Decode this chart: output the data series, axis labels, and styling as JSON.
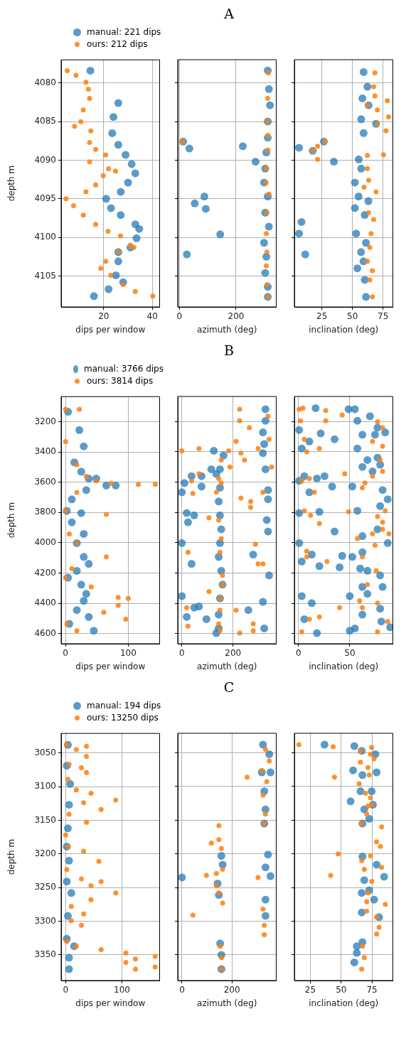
{
  "chart_data": [
    {
      "type": "scatter",
      "xlabel": "dips per window",
      "ylabel": "depth m",
      "xlim": [
        2.5,
        43
      ],
      "xticks": [
        20,
        40
      ],
      "ylim": [
        4109,
        4077
      ],
      "yticks": [
        4080,
        4085,
        4090,
        4095,
        4100,
        4105
      ],
      "grid": true,
      "marker": "circle",
      "legend": "top",
      "series": [
        {
          "name": "manual: 221 dips",
          "color": "#1f77b4",
          "x": [
            14.5,
            26,
            24,
            23.5,
            26,
            29,
            31.5,
            33,
            30,
            27,
            21,
            23,
            27,
            33,
            34.6,
            33.5,
            31,
            26,
            26,
            25,
            28,
            22,
            16
          ],
          "values": [
            4078.4,
            4082.6,
            4084.4,
            4086.5,
            4088,
            4089.3,
            4090.5,
            4091.7,
            4092.9,
            4094.1,
            4095,
            4096.2,
            4097.1,
            4098.3,
            4098.9,
            4100.1,
            4101.3,
            4101.9,
            4103.1,
            4104.9,
            4105.8,
            4106.7,
            4107.6
          ]
        },
        {
          "name": "ours: 212 dips",
          "color": "#ff7f0e",
          "x": [
            5,
            8.6,
            12.7,
            13.7,
            14.2,
            11.6,
            10.6,
            8,
            14.7,
            14.2,
            16.7,
            20.8,
            14.2,
            22,
            24.9,
            19.8,
            16.7,
            12.7,
            4.5,
            7.6,
            11.6,
            16.7,
            21.8,
            26.9,
            31,
            32.4,
            26,
            20.8,
            18.8,
            22.9,
            28,
            33,
            40.2
          ],
          "values": [
            4078.4,
            4079,
            4079.9,
            4080.8,
            4082,
            4083.5,
            4085,
            4085.6,
            4086.2,
            4087.7,
            4088.6,
            4089.3,
            4090.2,
            4091.1,
            4091.4,
            4092,
            4093.2,
            4094.1,
            4095,
            4095.9,
            4097.1,
            4098.3,
            4099.2,
            4099.8,
            4101,
            4101.3,
            4101.9,
            4103.1,
            4104,
            4104.9,
            4106.1,
            4107,
            4107.6
          ]
        }
      ]
    },
    {
      "type": "scatter",
      "title": "A",
      "xlabel": "azimuth (deg)",
      "xlim": [
        -6,
        342
      ],
      "xticks": [
        0,
        200
      ],
      "ylim": [
        4109,
        4077
      ],
      "yticks": [
        4080,
        4085,
        4090,
        4095,
        4100,
        4105
      ],
      "grid": true,
      "marker": "circle",
      "tick_labels": "x",
      "series": [
        {
          "color": "#1f77b4",
          "x": [
            312,
            316,
            320,
            312,
            312,
            307,
            303,
            299,
            312,
            303,
            316,
            299,
            307,
            303,
            312,
            312,
            13,
            35,
            224,
            269,
            88,
            54,
            93,
            144,
            26
          ],
          "values": [
            4078.4,
            4080.8,
            4082.9,
            4085,
            4087.1,
            4089,
            4091.1,
            4092.9,
            4094.7,
            4096.8,
            4098.6,
            4100.7,
            4102.5,
            4104.6,
            4106.4,
            4107.7,
            4087.6,
            4088.5,
            4088.2,
            4090.2,
            4094.7,
            4095.6,
            4096.3,
            4099.6,
            4102.2
          ]
        },
        {
          "color": "#ff7f0e",
          "x": [
            314,
            312,
            310,
            312,
            312,
            307,
            306,
            316,
            309,
            307,
            309,
            307,
            310,
            312,
            11
          ],
          "values": [
            4078.7,
            4082,
            4085,
            4086.8,
            4088.7,
            4091.1,
            4092.9,
            4094.4,
            4096.8,
            4099.5,
            4101.9,
            4103.7,
            4106.1,
            4107.7,
            4087.6
          ]
        }
      ]
    },
    {
      "type": "scatter",
      "xlabel": "inclination (deg)",
      "xlim": [
        2.5,
        83
      ],
      "xticks": [
        25,
        50,
        75
      ],
      "ylim": [
        4109,
        4077
      ],
      "yticks": [
        4080,
        4085,
        4090,
        4095,
        4100,
        4105
      ],
      "grid": true,
      "marker": "circle",
      "tick_labels": "x",
      "series": [
        {
          "color": "#1f77b4",
          "x": [
            59.1,
            62.2,
            58.1,
            63.2,
            57.1,
            69.3,
            59.1,
            6.3,
            17.5,
            26.6,
            34.8,
            55.1,
            57.1,
            52,
            55,
            63,
            52,
            60,
            8.3,
            6.3,
            53,
            61,
            57,
            11.4,
            59,
            54,
            60,
            61
          ],
          "values": [
            4078.6,
            4080.5,
            4082,
            4082.9,
            4084.7,
            4085.3,
            4086.5,
            4088.4,
            4088.8,
            4087.6,
            4090.2,
            4089.9,
            4091.1,
            4092.9,
            4094.7,
            4095.3,
            4096.2,
            4097.1,
            4098,
            4099.5,
            4099.5,
            4100.7,
            4101.9,
            4102.2,
            4103.1,
            4104,
            4105.5,
            4107.7
          ]
        },
        {
          "color": "#ff7f0e",
          "x": [
            68.3,
            67.3,
            68.3,
            78.5,
            62.2,
            70.3,
            79.5,
            70.3,
            77.4,
            27.6,
            21.5,
            17.5,
            21.5,
            75.4,
            62.2,
            62.2,
            63.2,
            59.5,
            69.3,
            63.2,
            67.3,
            65.2,
            64.2,
            62.2,
            66.3,
            64.2,
            66.3
          ],
          "values": [
            4078.7,
            4080.5,
            4081.7,
            4082.3,
            4082.9,
            4083.5,
            4084.4,
            4085.3,
            4086.2,
            4087.6,
            4088.2,
            4088.8,
            4089.9,
            4089.3,
            4089.4,
            4091.1,
            4092.6,
            4093.5,
            4094.1,
            4096.8,
            4097.7,
            4099.5,
            4101.3,
            4103.1,
            4104.3,
            4105.5,
            4107.7
          ]
        }
      ]
    },
    {
      "type": "scatter",
      "xlabel": "dips per window",
      "ylabel": "depth m",
      "xlim": [
        -7,
        150
      ],
      "xticks": [
        0,
        100
      ],
      "ylim": [
        4666,
        3035
      ],
      "yticks": [
        3200,
        3400,
        3600,
        3800,
        4000,
        4200,
        4400,
        4600
      ],
      "grid": true,
      "marker": "circle",
      "legend": "top",
      "series": [
        {
          "name": "manual: 3766 dips",
          "color": "#1f77b4",
          "x": [
            4,
            22,
            29,
            14,
            25,
            37,
            49,
            65,
            80,
            33,
            10,
            2,
            25,
            10,
            29,
            18,
            29,
            37,
            18,
            4,
            25,
            33,
            29,
            18,
            37,
            6,
            45
          ],
          "values": [
            3135,
            3256,
            3363,
            3469,
            3530,
            3576,
            3576,
            3622,
            3622,
            3652,
            3713,
            3789,
            3804,
            3865,
            3941,
            4002,
            4093,
            4139,
            4185,
            4230,
            4276,
            4337,
            4383,
            4444,
            4489,
            4535,
            4580
          ]
        },
        {
          "name": "ours: 3814 dips",
          "color": "#ff7f0e",
          "x": [
            0,
            22,
            0,
            18,
            33,
            49,
            73,
            116,
            143,
            18,
            0,
            65,
            6,
            18,
            65,
            10,
            0,
            41,
            84,
            100,
            84,
            61,
            96,
            2,
            18
          ],
          "values": [
            3119,
            3119,
            3332,
            3485,
            3561,
            3591,
            3606,
            3614,
            3614,
            3667,
            3789,
            3812,
            3941,
            4002,
            4093,
            4170,
            4230,
            4291,
            4360,
            4367,
            4413,
            4459,
            4504,
            4535,
            4580
          ]
        }
      ]
    },
    {
      "type": "scatter",
      "title": "B",
      "xlabel": "azimuth (deg)",
      "xlim": [
        -16,
        369
      ],
      "xticks": [
        0,
        200
      ],
      "ylim": [
        4666,
        3035
      ],
      "yticks": [
        3200,
        3400,
        3600,
        3800,
        4000,
        4200,
        4400,
        4600
      ],
      "grid": true,
      "marker": "circle",
      "tick_labels": "x",
      "series": [
        {
          "color": "#1f77b4",
          "x": [
            163,
            149,
            135,
            149,
            144,
            149,
            154,
            149,
            144,
            154,
            159,
            149,
            144,
            144,
            135,
            327,
            327,
            317,
            322,
            317,
            327,
            337,
            337,
            332,
            337,
            341,
            317,
            322,
            10,
            38,
            77,
            0,
            77,
            19,
            48,
            24,
            0,
            38,
            0,
            48,
            67,
            19,
            125,
            115,
            279,
            260,
            96
          ],
          "values": [
            3424,
            3515,
            3546,
            3637,
            3728,
            3819,
            3911,
            4002,
            4093,
            4185,
            4276,
            4367,
            4474,
            4565,
            4596,
            3119,
            3195,
            3272,
            3349,
            3409,
            3515,
            3652,
            3713,
            3850,
            3926,
            4215,
            4390,
            4565,
            3606,
            3561,
            3561,
            3667,
            3629,
            3804,
            3819,
            3865,
            4002,
            4139,
            4352,
            4428,
            4420,
            4489,
            3393,
            3515,
            4078,
            4444,
            4504
          ]
        },
        {
          "color": "#ff7f0e",
          "x": [
            154,
            144,
            154,
            135,
            144,
            154,
            149,
            159,
            159,
            149,
            149,
            144,
            149,
            226,
            226,
            264,
            337,
            341,
            212,
            183,
            231,
            245,
            188,
            298,
            351,
            67,
            0,
            67,
            38,
            43,
            231,
            269,
            269,
            317,
            106,
            24,
            288,
            298,
            317,
            106,
            19,
            24,
            279,
            279,
            226,
            212
          ],
          "values": [
            3454,
            3576,
            3606,
            3667,
            3850,
            3972,
            4063,
            4215,
            4276,
            4367,
            4444,
            4535,
            4580,
            3119,
            3195,
            3241,
            3165,
            3317,
            3332,
            3393,
            3409,
            3454,
            3500,
            3378,
            3500,
            3378,
            3393,
            3545,
            3591,
            3675,
            3705,
            3728,
            3766,
            3667,
            3835,
            4063,
            4010,
            4139,
            4139,
            4322,
            4428,
            4550,
            4535,
            4580,
            4596,
            4444
          ]
        }
      ]
    },
    {
      "type": "scatter",
      "xlabel": "inclination (deg)",
      "xlim": [
        -4,
        92
      ],
      "xticks": [
        0,
        50
      ],
      "ylim": [
        4666,
        3035
      ],
      "yticks": [
        3200,
        3400,
        3600,
        3800,
        4000,
        4200,
        4400,
        4600
      ],
      "grid": true,
      "marker": "circle",
      "tick_labels": "x",
      "series": [
        {
          "color": "#1f77b4",
          "x": [
            16.7,
            48.8,
            55,
            57.4,
            69.7,
            77.1,
            74.6,
            84.5,
            62.3,
            0.7,
            21.7,
            3.2,
            10.6,
            35.2,
            57.4,
            67.2,
            77.1,
            62.3,
            79.6,
            72.2,
            0.7,
            5.7,
            18,
            25.4,
            32.8,
            52.5,
            10.6,
            82,
            87,
            79.6,
            0.7,
            20.4,
            57.4,
            35.2,
            62.3,
            77.1,
            87,
            0.7,
            13,
            3.2,
            42.6,
            52.5,
            62.3,
            67.2,
            60.1,
            79.6,
            20.4,
            40.1,
            62.3,
            82,
            50,
            67.2,
            3.2,
            13,
            5.7,
            62.3,
            79.6,
            80.8,
            89.4,
            50,
            18,
            55
          ],
          "values": [
            3112,
            3119,
            3119,
            3195,
            3165,
            3241,
            3287,
            3272,
            3287,
            3256,
            3279,
            3378,
            3332,
            3317,
            3378,
            3454,
            3439,
            3500,
            3485,
            3530,
            3591,
            3561,
            3576,
            3561,
            3629,
            3629,
            3667,
            3652,
            3713,
            3758,
            3804,
            3796,
            3789,
            3926,
            3956,
            3911,
            4002,
            4002,
            4078,
            4124,
            4086,
            4093,
            4063,
            4185,
            4170,
            4215,
            4154,
            4162,
            4291,
            4291,
            4352,
            4337,
            4352,
            4398,
            4504,
            4474,
            4435,
            4519,
            4557,
            4580,
            4596,
            4565
          ]
        },
        {
          "color": "#ff7f0e",
          "x": [
            0.7,
            4.4,
            26.6,
            42.6,
            26.6,
            2,
            77.1,
            82,
            5.7,
            20.4,
            8.1,
            72.2,
            82,
            79.6,
            72.2,
            82,
            45.1,
            3.2,
            10.6,
            15.5,
            64.8,
            62.3,
            5.7,
            11.8,
            20.4,
            48.8,
            77.1,
            84.5,
            82,
            82,
            72.2,
            88.2,
            57.4,
            74.6,
            8.1,
            8.1,
            27.8,
            62.3,
            75.8,
            67.2,
            40.1,
            59.6,
            62.3,
            77.1,
            10.6,
            20.4,
            3.2,
            87,
            77.1
          ],
          "values": [
            3119,
            3112,
            3127,
            3157,
            3195,
            3195,
            3203,
            3241,
            3317,
            3378,
            3401,
            3332,
            3363,
            3454,
            3561,
            3530,
            3545,
            3591,
            3576,
            3667,
            3606,
            3637,
            3789,
            3819,
            3873,
            3796,
            3827,
            3789,
            3865,
            3911,
            3941,
            3941,
            3972,
            4017,
            4055,
            4093,
            4124,
            4093,
            4185,
            4276,
            4428,
            4383,
            4428,
            4398,
            4504,
            4489,
            4587,
            4519,
            4587
          ]
        }
      ]
    },
    {
      "type": "scatter",
      "xlabel": "dips per window",
      "ylabel": "depth m",
      "xlim": [
        -8,
        167
      ],
      "xticks": [
        0,
        100
      ],
      "ylim": [
        3388,
        3021
      ],
      "yticks": [
        3050,
        3100,
        3150,
        3200,
        3250,
        3300,
        3350
      ],
      "grid": true,
      "marker": "circle",
      "legend": "top",
      "series": [
        {
          "name": "manual: 194 dips",
          "color": "#1f77b4",
          "x": [
            4,
            2,
            8,
            6,
            4,
            2,
            6,
            2,
            10,
            4,
            2,
            15,
            6,
            6
          ],
          "values": [
            3038,
            3069,
            3096,
            3127,
            3162,
            3189,
            3210,
            3241,
            3258,
            3292,
            3326,
            3337,
            3354,
            3371
          ]
        },
        {
          "name": "ours: 13250 dips",
          "color": "#ff7f0e",
          "x": [
            2,
            37,
            19,
            37,
            6,
            28,
            37,
            4,
            19,
            45,
            89,
            63,
            32,
            6,
            37,
            0,
            4,
            32,
            59,
            2,
            28,
            63,
            45,
            89,
            45,
            10,
            32,
            10,
            28,
            2,
            19,
            63,
            107,
            159,
            124,
            107,
            159,
            124
          ],
          "values": [
            3038,
            3040,
            3045,
            3055,
            3067,
            3072,
            3079,
            3089,
            3105,
            3110,
            3120,
            3134,
            3124,
            3141,
            3153,
            3172,
            3189,
            3196,
            3211,
            3223,
            3237,
            3241,
            3247,
            3258,
            3268,
            3278,
            3289,
            3299,
            3306,
            3330,
            3337,
            3342,
            3347,
            3352,
            3356,
            3361,
            3368,
            3371
          ]
        }
      ]
    },
    {
      "type": "scatter",
      "title": "C",
      "xlabel": "azimuth (deg)",
      "xlim": [
        -17,
        378
      ],
      "xticks": [
        0,
        200
      ],
      "ylim": [
        3388,
        3021
      ],
      "yticks": [
        3050,
        3100,
        3150,
        3200,
        3250,
        3300,
        3350
      ],
      "grid": true,
      "marker": "circle",
      "tick_labels": "x",
      "series": [
        {
          "color": "#1f77b4",
          "x": [
            325,
            350,
            320,
            355,
            330,
            335,
            330,
            158,
            163,
            0,
            345,
            335,
            355,
            143,
            148,
            335,
            335,
            153,
            158,
            158
          ],
          "values": [
            3038,
            3052,
            3079,
            3079,
            3107,
            3134,
            3155,
            3203,
            3216,
            3235,
            3201,
            3220,
            3233,
            3244,
            3261,
            3268,
            3292,
            3333,
            3350,
            3371
          ]
        },
        {
          "color": "#ff7f0e",
          "x": [
            335,
            350,
            320,
            261,
            340,
            325,
            335,
            330,
            148,
            118,
            148,
            158,
            163,
            98,
            138,
            305,
            138,
            148,
            163,
            325,
            330,
            330,
            44,
            153,
            158,
            158
          ],
          "values": [
            3045,
            3062,
            3076,
            3086,
            3093,
            3113,
            3141,
            3155,
            3158,
            3184,
            3179,
            3192,
            3223,
            3232,
            3229,
            3235,
            3247,
            3258,
            3273,
            3282,
            3306,
            3320,
            3291,
            3337,
            3354,
            3371
          ]
        }
      ]
    },
    {
      "type": "scatter",
      "xlabel": "inclination (deg)",
      "xlim": [
        12,
        92
      ],
      "xticks": [
        25,
        50,
        75
      ],
      "ylim": [
        3388,
        3021
      ],
      "yticks": [
        3050,
        3100,
        3150,
        3200,
        3250,
        3300,
        3350
      ],
      "grid": true,
      "marker": "circle",
      "tick_labels": "x",
      "series": [
        {
          "color": "#1f77b4",
          "x": [
            36.5,
            60.7,
            66.7,
            77.8,
            59.7,
            67.3,
            78.8,
            65.7,
            74.8,
            57.7,
            68.8,
            75.8,
            72.8,
            67.3,
            67.3,
            78.8,
            84.9,
            68.8,
            66.7,
            72.8,
            76.8,
            66.7,
            80.8,
            62.7,
            60.7,
            62.7,
            67.3
          ],
          "values": [
            3038,
            3040,
            3047,
            3052,
            3076,
            3083,
            3079,
            3107,
            3107,
            3122,
            3134,
            3127,
            3148,
            3155,
            3204,
            3216,
            3234,
            3239,
            3258,
            3254,
            3268,
            3287,
            3294,
            3347,
            3361,
            3337,
            3331
          ]
        },
        {
          "color": "#ff7f0e",
          "x": [
            15.7,
            43.5,
            74.8,
            65.7,
            73.8,
            76.8,
            65.7,
            71.8,
            72.8,
            44.6,
            64.7,
            69.8,
            73.8,
            71.8,
            74.8,
            70.8,
            66.7,
            82.9,
            78.8,
            81.9,
            47.6,
            73.8,
            66.7,
            82.9,
            68.8,
            41.5,
            74.8,
            71.8,
            70.8,
            85.9,
            70.8,
            78.8,
            80.8,
            78.8,
            67.3,
            68.8,
            66.7
          ],
          "values": [
            3038,
            3041,
            3042,
            3047,
            3052,
            3059,
            3064,
            3072,
            3083,
            3086,
            3096,
            3110,
            3117,
            3129,
            3127,
            3141,
            3155,
            3160,
            3182,
            3189,
            3200,
            3203,
            3210,
            3220,
            3223,
            3232,
            3241,
            3258,
            3271,
            3275,
            3285,
            3294,
            3309,
            3319,
            3337,
            3354,
            3371
          ]
        }
      ]
    }
  ]
}
